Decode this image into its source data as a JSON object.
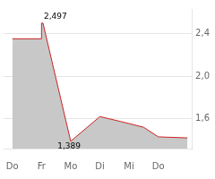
{
  "chart_data": {
    "type": "area",
    "x": [
      0,
      1,
      1,
      1.05,
      2,
      2,
      3,
      3,
      3.7,
      3.7,
      4.5,
      4.5,
      5,
      5,
      6
    ],
    "values": [
      2.35,
      2.35,
      2.497,
      2.497,
      1.389,
      1.389,
      1.62,
      1.62,
      1.575,
      1.575,
      1.52,
      1.52,
      1.43,
      1.43,
      1.42
    ],
    "color": "#cc2222",
    "xlim": [
      -0.3,
      6.15
    ],
    "xticks": [
      {
        "value": 0,
        "label": "Do"
      },
      {
        "value": 1,
        "label": "Fr"
      },
      {
        "value": 2,
        "label": "Mo"
      },
      {
        "value": 3,
        "label": "Di"
      },
      {
        "value": 4,
        "label": "Mi"
      },
      {
        "value": 5,
        "label": "Do"
      }
    ],
    "ylim": [
      1.32,
      2.63
    ],
    "yticks": [
      {
        "value": 1.6,
        "label": "1,6"
      },
      {
        "value": 2.0,
        "label": "2,0"
      },
      {
        "value": 2.4,
        "label": "2,4"
      }
    ],
    "grid": true,
    "annotations": [
      {
        "text": "2,497",
        "x": 1.08,
        "y": 2.497
      },
      {
        "text": "1,389",
        "x": 1.55,
        "y": 1.389
      }
    ]
  }
}
